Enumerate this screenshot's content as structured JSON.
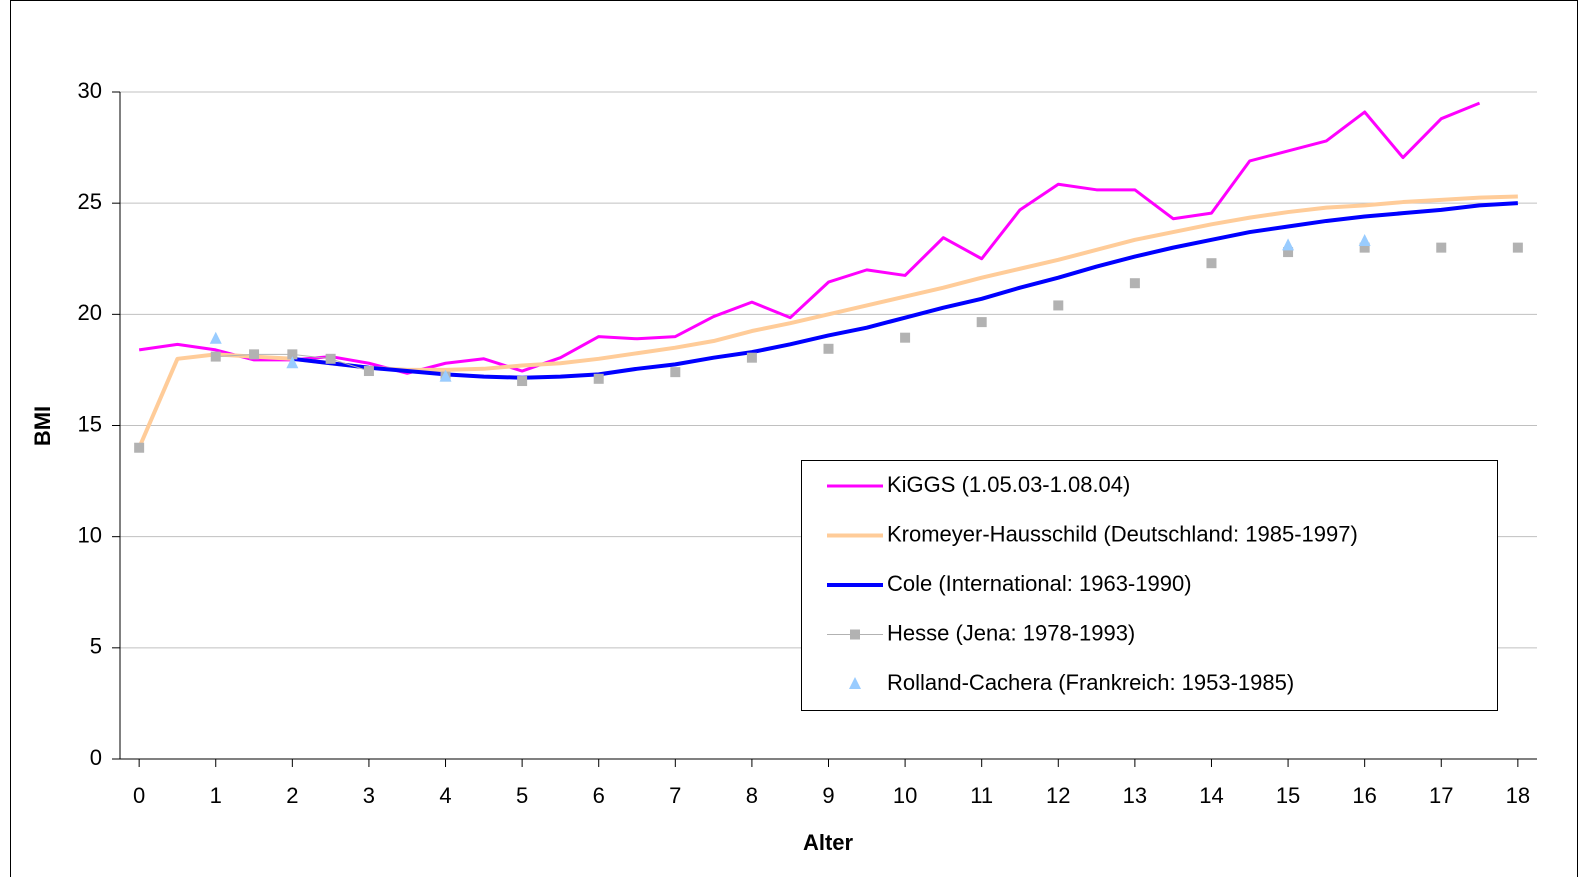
{
  "chart_data": {
    "type": "line",
    "x_label": "Alter",
    "y_label": "BMI",
    "x": [
      0,
      0.5,
      1,
      1.5,
      2,
      2.5,
      3,
      3.5,
      4,
      4.5,
      5,
      5.5,
      6,
      6.5,
      7,
      7.5,
      8,
      8.5,
      9,
      9.5,
      10,
      10.5,
      11,
      11.5,
      12,
      12.5,
      13,
      13.5,
      14,
      14.5,
      15,
      15.5,
      16,
      16.5,
      17,
      17.5,
      18
    ],
    "xlim": [
      -0.25,
      18.25
    ],
    "xticks": [
      0,
      1,
      2,
      3,
      4,
      5,
      6,
      7,
      8,
      9,
      10,
      11,
      12,
      13,
      14,
      15,
      16,
      17,
      18
    ],
    "ylim": [
      0,
      30
    ],
    "yticks": [
      0,
      5,
      10,
      15,
      20,
      25,
      30
    ],
    "grid": true,
    "legend": "lower right",
    "series": [
      {
        "name": "KiGGS (1.05.03-1.08.04)",
        "color": "#ff00ff",
        "line": true,
        "marker": "none",
        "line_width": 3,
        "values": [
          18.4,
          18.65,
          18.4,
          17.95,
          17.95,
          18.1,
          17.8,
          17.35,
          17.8,
          18.0,
          17.45,
          18.05,
          19.0,
          18.9,
          19.0,
          19.9,
          20.55,
          19.85,
          21.45,
          22.0,
          21.75,
          23.45,
          22.5,
          24.7,
          25.85,
          25.6,
          25.6,
          24.3,
          24.55,
          26.9,
          27.35,
          27.8,
          29.1,
          27.05,
          28.8,
          29.5,
          null
        ]
      },
      {
        "name": "Kromeyer-Hausschild (Deutschland: 1985-1997)",
        "color": "#ffcc99",
        "line": true,
        "marker": "none",
        "line_width": 4,
        "values": [
          14,
          18.0,
          18.2,
          18.1,
          18.0,
          17.8,
          17.6,
          17.5,
          17.5,
          17.55,
          17.7,
          17.8,
          18.0,
          18.25,
          18.5,
          18.8,
          19.25,
          19.6,
          20.0,
          20.4,
          20.8,
          21.2,
          21.65,
          22.05,
          22.45,
          22.9,
          23.35,
          23.7,
          24.05,
          24.35,
          24.6,
          24.8,
          24.9,
          25.05,
          25.15,
          25.25,
          25.3
        ]
      },
      {
        "name": "Cole (International: 1963-1990)",
        "color": "#0000ff",
        "line": true,
        "marker": "none",
        "line_width": 4,
        "values": [
          null,
          null,
          null,
          null,
          18.0,
          17.8,
          17.6,
          17.45,
          17.3,
          17.2,
          17.15,
          17.2,
          17.3,
          17.55,
          17.75,
          18.05,
          18.3,
          18.65,
          19.05,
          19.4,
          19.85,
          20.3,
          20.7,
          21.2,
          21.65,
          22.15,
          22.6,
          23.0,
          23.35,
          23.7,
          23.95,
          24.2,
          24.4,
          24.55,
          24.7,
          24.9,
          25.0
        ]
      },
      {
        "name": "Hesse (Jena: 1978-1993)",
        "color": "#b2b2b2",
        "line": true,
        "marker": "square",
        "line_width": 1,
        "values": [
          14,
          null,
          18.1,
          18.2,
          18.2,
          18.0,
          17.45,
          null,
          17.2,
          null,
          17.0,
          null,
          17.1,
          null,
          17.4,
          null,
          18.05,
          null,
          18.45,
          null,
          18.95,
          null,
          19.65,
          null,
          20.4,
          null,
          21.4,
          null,
          22.3,
          null,
          22.8,
          null,
          23.0,
          null,
          23.0,
          null,
          23.0
        ]
      },
      {
        "name": "Rolland-Cachera (Frankreich: 1953-1985)",
        "color": "#99ccff",
        "line": false,
        "marker": "triangle",
        "line_width": 0,
        "values": [
          null,
          null,
          18.9,
          null,
          17.8,
          null,
          null,
          null,
          17.2,
          null,
          null,
          null,
          null,
          null,
          null,
          null,
          null,
          null,
          null,
          null,
          null,
          null,
          null,
          null,
          null,
          null,
          null,
          null,
          null,
          null,
          23.1,
          null,
          23.3,
          null,
          null,
          null,
          null
        ]
      }
    ]
  }
}
